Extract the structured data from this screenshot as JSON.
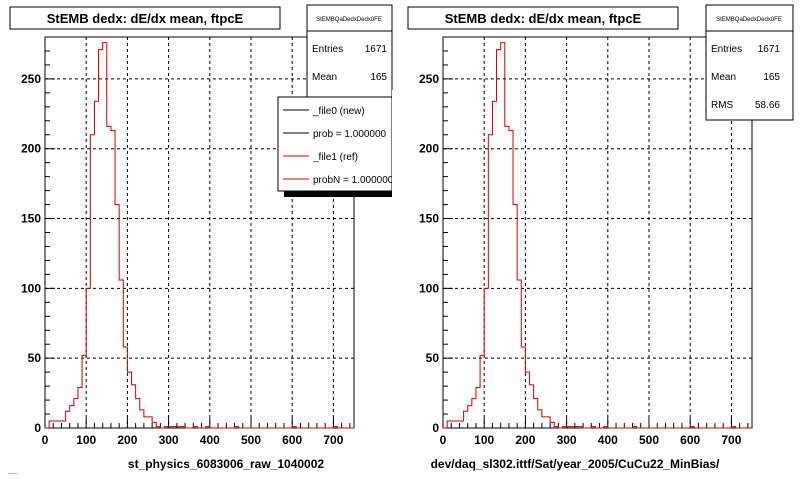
{
  "chart_data": [
    {
      "type": "line",
      "title": "StEMB dedx: dE/dx mean, ftpcE",
      "xlabel": "st_physics_6083006_raw_1040002",
      "xlim": [
        0,
        750
      ],
      "ylim": [
        0,
        280
      ],
      "x_ticks": [
        "0",
        "100",
        "200",
        "300",
        "400",
        "500",
        "600",
        "700"
      ],
      "y_ticks": [
        "0",
        "50",
        "100",
        "150",
        "200",
        "250"
      ],
      "grid": true,
      "bin_edges": [
        0,
        10,
        20,
        30,
        40,
        50,
        60,
        70,
        80,
        90,
        100,
        110,
        120,
        130,
        140,
        150,
        160,
        170,
        180,
        190,
        200,
        210,
        220,
        230,
        240,
        250,
        260,
        270,
        280,
        290,
        300,
        310,
        320,
        330,
        340,
        350,
        360,
        370,
        380,
        390,
        400,
        410,
        420,
        430,
        440,
        450,
        460,
        470,
        480,
        490,
        500,
        510,
        520,
        530,
        540,
        550,
        560,
        570,
        580,
        590,
        600,
        610,
        620,
        630,
        640,
        650,
        660,
        670,
        680,
        690,
        700,
        710,
        720,
        730,
        740,
        750
      ],
      "series": [
        {
          "name": "_file1 (ref)",
          "color": "#cc0000",
          "values": [
            0,
            5,
            5,
            5,
            5,
            12,
            16,
            21,
            29,
            52,
            100,
            210,
            234,
            271,
            276,
            216,
            213,
            160,
            106,
            58,
            40,
            31,
            21,
            13,
            8,
            8,
            4,
            1,
            0,
            1,
            1,
            1,
            1,
            1,
            0,
            0,
            1,
            0,
            0,
            1,
            0,
            0,
            0,
            0,
            0,
            0,
            1,
            0,
            0,
            0,
            0,
            0,
            0,
            0,
            0,
            0,
            0,
            0,
            0,
            0,
            1,
            0,
            0,
            0,
            0,
            0,
            0,
            0,
            0,
            0,
            1,
            0,
            0,
            0,
            0
          ]
        }
      ],
      "stats": {
        "header": "StEMBQaDedxDedx0FE",
        "entries_label": "Entries",
        "entries": "1671",
        "mean_label": "Mean",
        "mean": "165"
      },
      "legend": [
        "_file0 (new)",
        "prob = 1.000000",
        "_file1 (ref)",
        "probN = 1.000000"
      ],
      "legend_colors": [
        "#000000",
        "#000000",
        "#cc0000",
        "#cc0000"
      ]
    },
    {
      "type": "line",
      "title": "StEMB dedx: dE/dx mean, ftpcE",
      "xlabel": "dev/daq_sl302.ittf/Sat/year_2005/CuCu22_MinBias/",
      "xlim": [
        0,
        750
      ],
      "ylim": [
        0,
        280
      ],
      "x_ticks": [
        "0",
        "100",
        "200",
        "300",
        "400",
        "500",
        "600",
        "700"
      ],
      "y_ticks": [
        "0",
        "50",
        "100",
        "150",
        "200",
        "250"
      ],
      "grid": true,
      "bin_edges": [
        0,
        10,
        20,
        30,
        40,
        50,
        60,
        70,
        80,
        90,
        100,
        110,
        120,
        130,
        140,
        150,
        160,
        170,
        180,
        190,
        200,
        210,
        220,
        230,
        240,
        250,
        260,
        270,
        280,
        290,
        300,
        310,
        320,
        330,
        340,
        350,
        360,
        370,
        380,
        390,
        400,
        410,
        420,
        430,
        440,
        450,
        460,
        470,
        480,
        490,
        500,
        510,
        520,
        530,
        540,
        550,
        560,
        570,
        580,
        590,
        600,
        610,
        620,
        630,
        640,
        650,
        660,
        670,
        680,
        690,
        700,
        710,
        720,
        730,
        740,
        750
      ],
      "series": [
        {
          "name": "",
          "color": "#cc0000",
          "values": [
            0,
            5,
            5,
            5,
            5,
            12,
            16,
            21,
            29,
            52,
            100,
            210,
            234,
            271,
            276,
            216,
            213,
            160,
            106,
            58,
            40,
            31,
            21,
            13,
            8,
            8,
            4,
            1,
            0,
            1,
            1,
            1,
            1,
            1,
            0,
            0,
            1,
            0,
            0,
            1,
            0,
            0,
            0,
            0,
            0,
            0,
            1,
            0,
            0,
            0,
            0,
            0,
            0,
            0,
            0,
            0,
            0,
            0,
            0,
            0,
            1,
            0,
            0,
            0,
            0,
            0,
            0,
            0,
            0,
            0,
            1,
            0,
            0,
            0,
            0
          ]
        }
      ],
      "stats": {
        "header": "StEMBQaDedxDedx0FE",
        "entries_label": "Entries",
        "entries": "1671",
        "mean_label": "Mean",
        "mean": "165",
        "rms_label": "RMS",
        "rms": "58.66"
      }
    }
  ],
  "footer_text": "......"
}
